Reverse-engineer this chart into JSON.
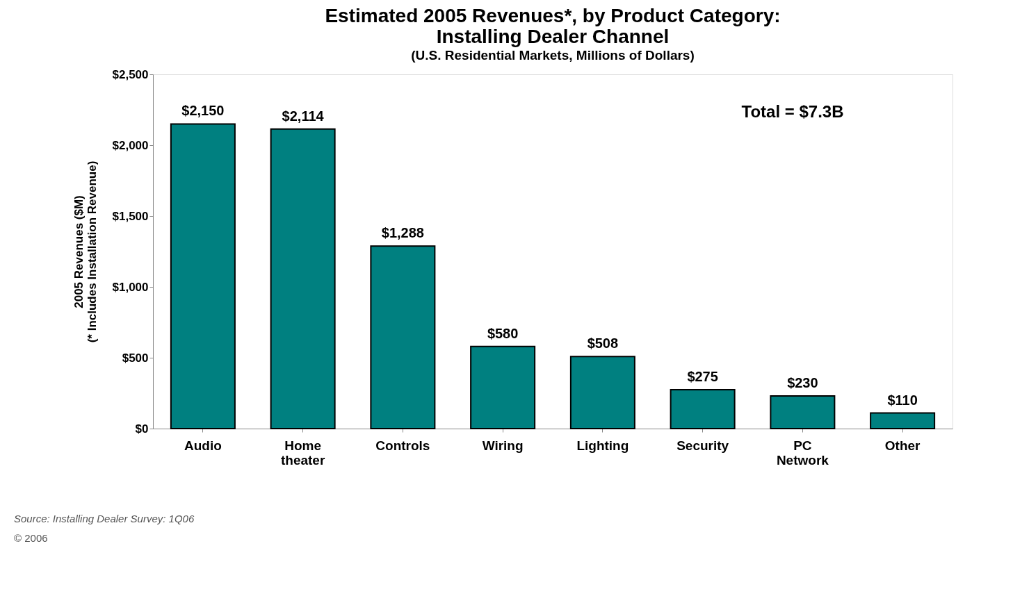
{
  "chart_data": {
    "type": "bar",
    "title": "Estimated 2005 Revenues*, by Product Category:\nInstalling Dealer Channel",
    "subtitle": "(U.S. Residential Markets, Millions of Dollars)",
    "ylabel": "2005 Revenues ($M)\n(* Includes Installation Revenue)",
    "categories": [
      "Audio",
      "Home theater",
      "Controls",
      "Wiring",
      "Lighting",
      "Security",
      "PC Network",
      "Other"
    ],
    "values": [
      2150,
      2114,
      1288,
      580,
      508,
      275,
      230,
      110
    ],
    "value_labels": [
      "$2,150",
      "$2,114",
      "$1,288",
      "$580",
      "$508",
      "$275",
      "$230",
      "$110"
    ],
    "color": "#008080",
    "ylim": [
      0,
      2500
    ],
    "yticks": [
      {
        "value": 0,
        "label": "$0"
      },
      {
        "value": 500,
        "label": "$500"
      },
      {
        "value": 1000,
        "label": "$1,000"
      },
      {
        "value": 1500,
        "label": "$1,500"
      },
      {
        "value": 2000,
        "label": "$2,000"
      },
      {
        "value": 2500,
        "label": "$2,500"
      }
    ],
    "grid": false,
    "annotations": [
      "Total = $7.3B",
      "Source: Installing Dealer Survey: 1Q06",
      "© 2006"
    ]
  }
}
